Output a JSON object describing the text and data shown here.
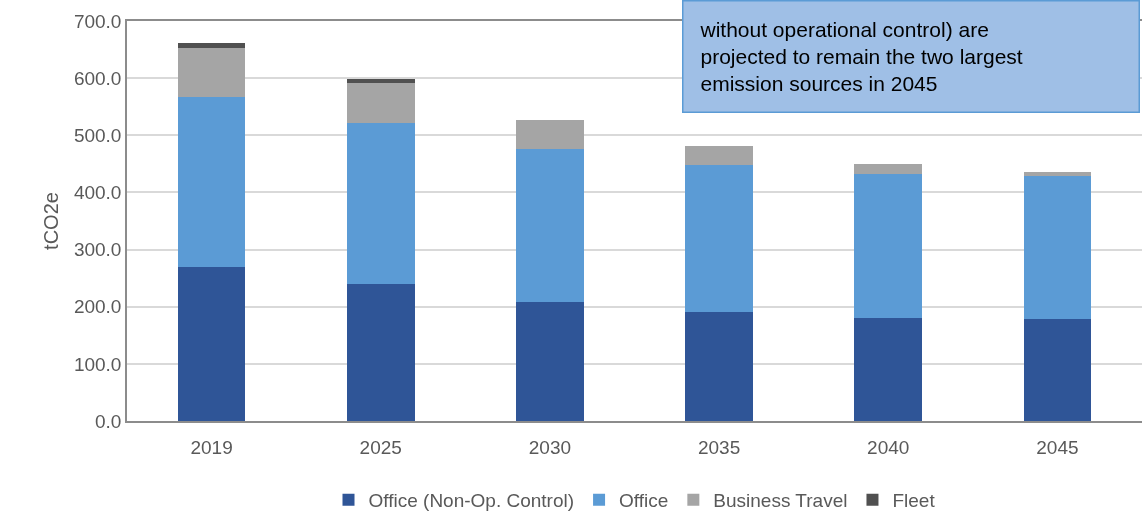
{
  "chart_data": {
    "type": "bar",
    "stacked": true,
    "ylabel": "tCO2e",
    "categories": [
      "2019",
      "2025",
      "2030",
      "2035",
      "2040",
      "2045"
    ],
    "series": [
      {
        "name": "Office (Non-Op. Control)",
        "color": "#2f5597",
        "values": [
          270,
          240,
          209,
          191,
          181,
          179
        ]
      },
      {
        "name": "Office",
        "color": "#5b9bd5",
        "values": [
          297,
          282,
          267,
          257,
          251,
          250
        ]
      },
      {
        "name": "Business Travel",
        "color": "#a5a5a5",
        "values": [
          86,
          69,
          51,
          33,
          18,
          6
        ]
      },
      {
        "name": "Fleet",
        "color": "#505050",
        "values": [
          9,
          8,
          null,
          null,
          null,
          null
        ]
      }
    ],
    "ylim": [
      0,
      700
    ],
    "yticks": [
      {
        "value": 0,
        "label": "0.0"
      },
      {
        "value": 100,
        "label": "100.0"
      },
      {
        "value": 200,
        "label": "200.0"
      },
      {
        "value": 300,
        "label": "300.0"
      },
      {
        "value": 400,
        "label": "400.0"
      },
      {
        "value": 500,
        "label": "500.0"
      },
      {
        "value": 600,
        "label": "600.0"
      },
      {
        "value": 700,
        "label": "700.0"
      }
    ],
    "grid": "y",
    "legend": "bottom",
    "annotations": [
      "without operational control) are projected to remain the two largest emission sources in 2045"
    ]
  }
}
